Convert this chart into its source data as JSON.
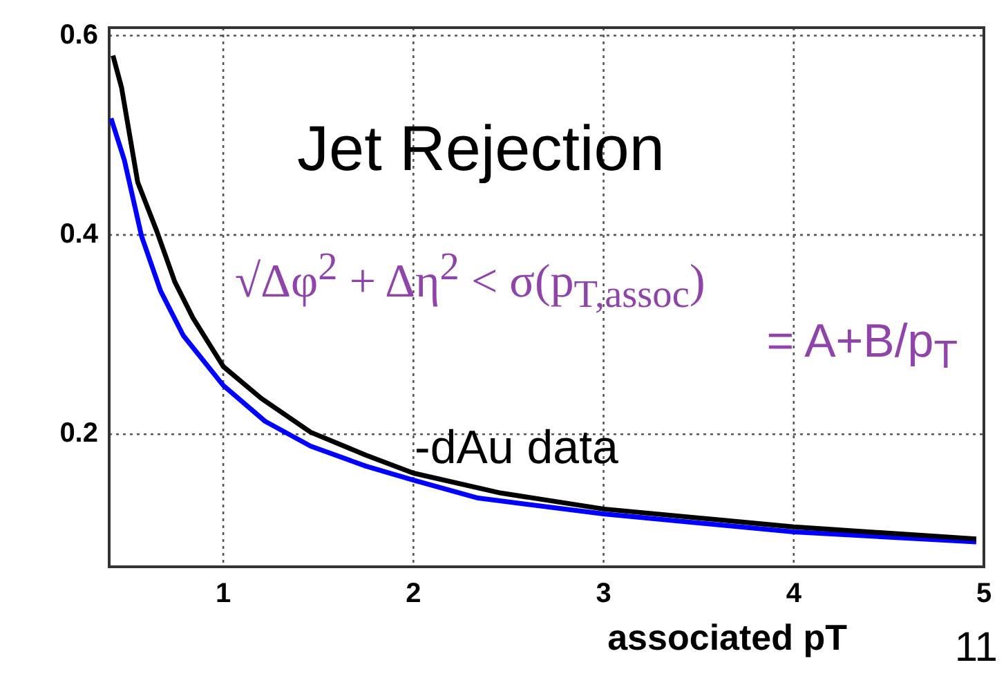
{
  "chart_data": {
    "type": "line",
    "title": "Jet Rejection",
    "xlabel": "associated  pT",
    "xlim": [
      0.4,
      5
    ],
    "xticks": [
      1,
      2,
      3,
      4,
      5
    ],
    "ylim": [
      0.067,
      0.608
    ],
    "yticks": [
      0.2,
      0.4,
      0.6
    ],
    "grid": true,
    "legend": false,
    "marker": "none",
    "line_style": "solid",
    "annotations": [
      "√Δφ$^{2}$ + Δη$^{2}$ < σ(p$_{T,assoc}$)",
      "= A+B/p$_{T}$",
      "11"
    ],
    "series": [
      {
        "name": "-dAu data",
        "color": "#000000",
        "x": [
          0.42,
          0.465,
          0.55,
          0.65,
          0.745,
          0.84,
          1.0,
          1.2,
          1.46,
          1.75,
          2.0,
          2.46,
          3.0,
          4.0,
          4.96
        ],
        "values": [
          0.58,
          0.548,
          0.453,
          0.404,
          0.353,
          0.317,
          0.268,
          0.236,
          0.202,
          0.179,
          0.161,
          0.141,
          0.125,
          0.107,
          0.095
        ]
      },
      {
        "color": "#0000ff",
        "x": [
          0.41,
          0.48,
          0.57,
          0.67,
          0.79,
          1.0,
          1.22,
          1.46,
          1.75,
          2.0,
          2.34,
          3.0,
          4.0,
          4.96
        ],
        "values": [
          0.517,
          0.475,
          0.399,
          0.344,
          0.299,
          0.249,
          0.213,
          0.188,
          0.168,
          0.154,
          0.136,
          0.12,
          0.102,
          0.092
        ]
      }
    ]
  }
}
